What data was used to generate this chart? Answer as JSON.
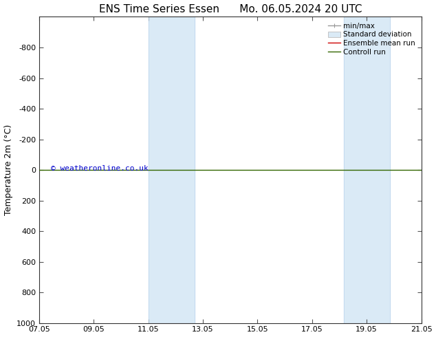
{
  "title": "ENS Time Series Essen      Mo. 06.05.2024 20 UTC",
  "ylabel": "Temperature 2m (°C)",
  "xlabel": "",
  "xlim_labels": [
    "07.05",
    "09.05",
    "11.05",
    "13.05",
    "15.05",
    "17.05",
    "19.05",
    "21.05"
  ],
  "xlim": [
    0,
    7
  ],
  "ylim_top": -1000,
  "ylim_bottom": 1000,
  "yticks": [
    -800,
    -600,
    -400,
    -200,
    0,
    200,
    400,
    600,
    800,
    1000
  ],
  "shaded_bands": [
    {
      "x_start": 2.0,
      "x_end": 2.85,
      "color": "#daeaf6"
    },
    {
      "x_start": 5.58,
      "x_end": 6.43,
      "color": "#daeaf6"
    }
  ],
  "band_edge_color": "#c0d8ee",
  "band_edge_lw": 0.6,
  "horizontal_line": {
    "y": 0,
    "color": "#336600",
    "lw": 1.0
  },
  "watermark": "© weatheronline.co.uk",
  "watermark_color": "#0000cc",
  "background_color": "#ffffff",
  "plot_bg_color": "#ffffff",
  "legend": {
    "items": [
      "min/max",
      "Standard deviation",
      "Ensemble mean run",
      "Controll run"
    ],
    "line_colors": [
      "#999999",
      "#bbbbbb",
      "#cc0000",
      "#336600"
    ]
  },
  "title_fontsize": 11,
  "axis_fontsize": 9,
  "tick_fontsize": 8,
  "legend_fontsize": 7.5
}
